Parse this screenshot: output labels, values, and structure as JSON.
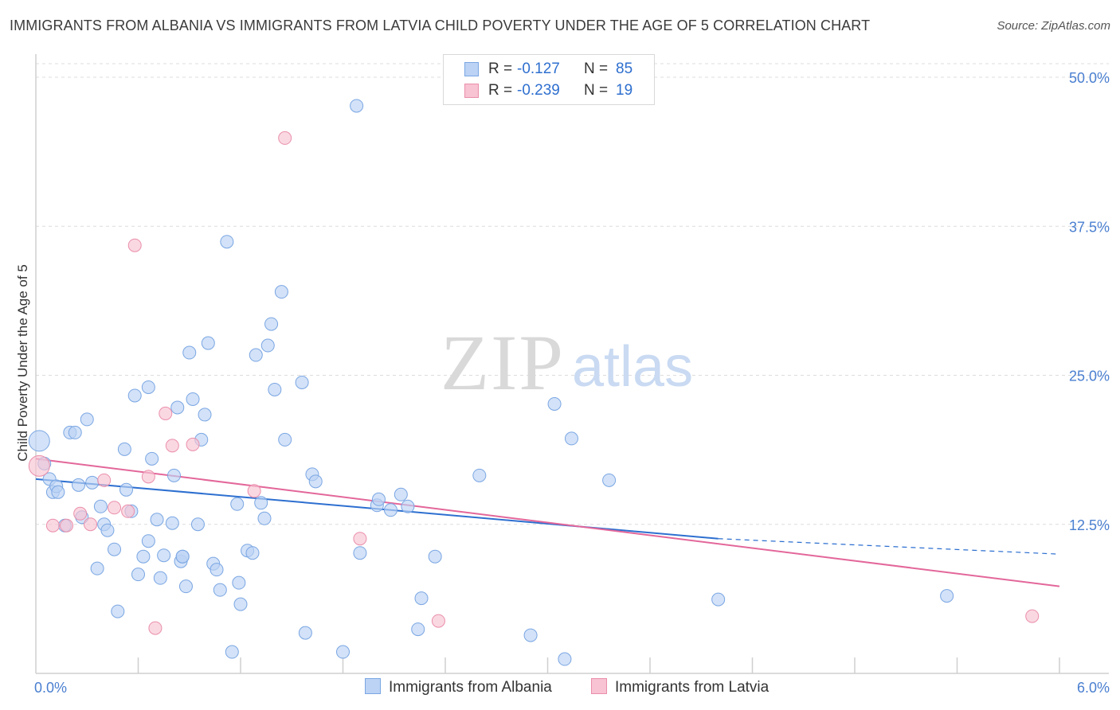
{
  "title": "IMMIGRANTS FROM ALBANIA VS IMMIGRANTS FROM LATVIA CHILD POVERTY UNDER THE AGE OF 5 CORRELATION CHART",
  "source": "Source: ZipAtlas.com",
  "watermark": {
    "zip": "ZIP",
    "atlas": "atlas"
  },
  "legend": {
    "rows": [
      {
        "r_label": "R =",
        "r_value": "-0.127",
        "n_label": "N =",
        "n_value": "85"
      },
      {
        "r_label": "R =",
        "r_value": "-0.239",
        "n_label": "N =",
        "n_value": "19"
      }
    ]
  },
  "bottom_legend": {
    "albania": "Immigrants from Albania",
    "latvia": "Immigrants from Latvia"
  },
  "colors": {
    "albania_fill": "#bcd3f5",
    "albania_stroke": "#7aa6e3",
    "albania_line": "#2d6fd0",
    "latvia_fill": "#f8c3d3",
    "latvia_stroke": "#ea8fab",
    "latvia_line": "#e3679a",
    "grid": "#dcdcdc",
    "axis_text": "#4a7fd0"
  },
  "chart_data": {
    "type": "scatter",
    "title": "IMMIGRANTS FROM ALBANIA VS IMMIGRANTS FROM LATVIA CHILD POVERTY UNDER THE AGE OF 5 CORRELATION CHART",
    "xlabel": "",
    "ylabel": "Child Poverty Under the Age of 5",
    "xlim": [
      0,
      6.0
    ],
    "ylim": [
      0,
      50
    ],
    "y_ticks": [
      12.5,
      25.0,
      37.5,
      50.0
    ],
    "y_tick_labels": [
      "12.5%",
      "25.0%",
      "37.5%",
      "50.0%"
    ],
    "x_tick_labels": [
      "0.0%",
      "6.0%"
    ],
    "series": [
      {
        "name": "Immigrants from Albania",
        "R": -0.127,
        "N": 85,
        "trend": {
          "x0": 0.0,
          "y0": 16.3,
          "x1": 4.0,
          "y1": 11.3,
          "dash_to_x": 6.0,
          "dash_to_y": 10.0
        },
        "points": [
          [
            0.02,
            19.5
          ],
          [
            0.05,
            17.6
          ],
          [
            0.08,
            16.3
          ],
          [
            0.1,
            15.2
          ],
          [
            0.12,
            15.7
          ],
          [
            0.13,
            15.2
          ],
          [
            0.17,
            12.4
          ],
          [
            0.2,
            20.2
          ],
          [
            0.23,
            20.2
          ],
          [
            0.25,
            15.8
          ],
          [
            0.27,
            13.1
          ],
          [
            0.3,
            21.3
          ],
          [
            0.33,
            16.0
          ],
          [
            0.36,
            8.8
          ],
          [
            0.38,
            14.0
          ],
          [
            0.4,
            12.5
          ],
          [
            0.42,
            12.0
          ],
          [
            0.46,
            10.4
          ],
          [
            0.48,
            5.2
          ],
          [
            0.52,
            18.8
          ],
          [
            0.53,
            15.4
          ],
          [
            0.56,
            13.6
          ],
          [
            0.58,
            23.3
          ],
          [
            0.6,
            8.3
          ],
          [
            0.63,
            9.8
          ],
          [
            0.66,
            11.1
          ],
          [
            0.66,
            24.0
          ],
          [
            0.68,
            18.0
          ],
          [
            0.71,
            12.9
          ],
          [
            0.73,
            8.0
          ],
          [
            0.75,
            9.9
          ],
          [
            0.8,
            12.6
          ],
          [
            0.81,
            16.6
          ],
          [
            0.83,
            22.3
          ],
          [
            0.85,
            9.4
          ],
          [
            0.86,
            9.8
          ],
          [
            0.86,
            9.8
          ],
          [
            0.88,
            7.3
          ],
          [
            0.9,
            26.9
          ],
          [
            0.92,
            23.0
          ],
          [
            0.95,
            12.5
          ],
          [
            0.97,
            19.6
          ],
          [
            0.99,
            21.7
          ],
          [
            1.01,
            27.7
          ],
          [
            1.04,
            9.2
          ],
          [
            1.06,
            8.7
          ],
          [
            1.08,
            7.0
          ],
          [
            1.12,
            36.2
          ],
          [
            1.15,
            1.8
          ],
          [
            1.18,
            14.2
          ],
          [
            1.19,
            7.6
          ],
          [
            1.2,
            5.8
          ],
          [
            1.24,
            10.3
          ],
          [
            1.27,
            10.1
          ],
          [
            1.29,
            26.7
          ],
          [
            1.32,
            14.3
          ],
          [
            1.34,
            13.0
          ],
          [
            1.36,
            27.5
          ],
          [
            1.38,
            29.3
          ],
          [
            1.4,
            23.8
          ],
          [
            1.44,
            32.0
          ],
          [
            1.46,
            19.6
          ],
          [
            1.56,
            24.4
          ],
          [
            1.58,
            3.4
          ],
          [
            1.62,
            16.7
          ],
          [
            1.64,
            16.1
          ],
          [
            1.8,
            1.8
          ],
          [
            1.88,
            47.6
          ],
          [
            1.9,
            10.1
          ],
          [
            2.0,
            14.1
          ],
          [
            2.01,
            14.6
          ],
          [
            2.08,
            13.7
          ],
          [
            2.14,
            15.0
          ],
          [
            2.18,
            14.0
          ],
          [
            2.24,
            3.7
          ],
          [
            2.26,
            6.3
          ],
          [
            2.34,
            9.8
          ],
          [
            2.6,
            16.6
          ],
          [
            2.9,
            3.2
          ],
          [
            3.04,
            22.6
          ],
          [
            3.1,
            1.2
          ],
          [
            3.14,
            19.7
          ],
          [
            3.36,
            16.2
          ],
          [
            4.0,
            6.2
          ],
          [
            5.34,
            6.5
          ]
        ]
      },
      {
        "name": "Immigrants from Latvia",
        "R": -0.239,
        "N": 19,
        "trend": {
          "x0": 0.0,
          "y0": 18.0,
          "x1": 6.0,
          "y1": 7.3
        },
        "points": [
          [
            0.02,
            17.4
          ],
          [
            0.1,
            12.4
          ],
          [
            0.18,
            12.4
          ],
          [
            0.26,
            13.4
          ],
          [
            0.32,
            12.5
          ],
          [
            0.4,
            16.2
          ],
          [
            0.46,
            13.9
          ],
          [
            0.54,
            13.6
          ],
          [
            0.58,
            35.9
          ],
          [
            0.66,
            16.5
          ],
          [
            0.7,
            3.8
          ],
          [
            0.76,
            21.8
          ],
          [
            0.8,
            19.1
          ],
          [
            0.92,
            19.2
          ],
          [
            1.28,
            15.3
          ],
          [
            1.46,
            44.9
          ],
          [
            1.9,
            11.3
          ],
          [
            2.36,
            4.4
          ],
          [
            5.84,
            4.8
          ]
        ]
      }
    ]
  }
}
